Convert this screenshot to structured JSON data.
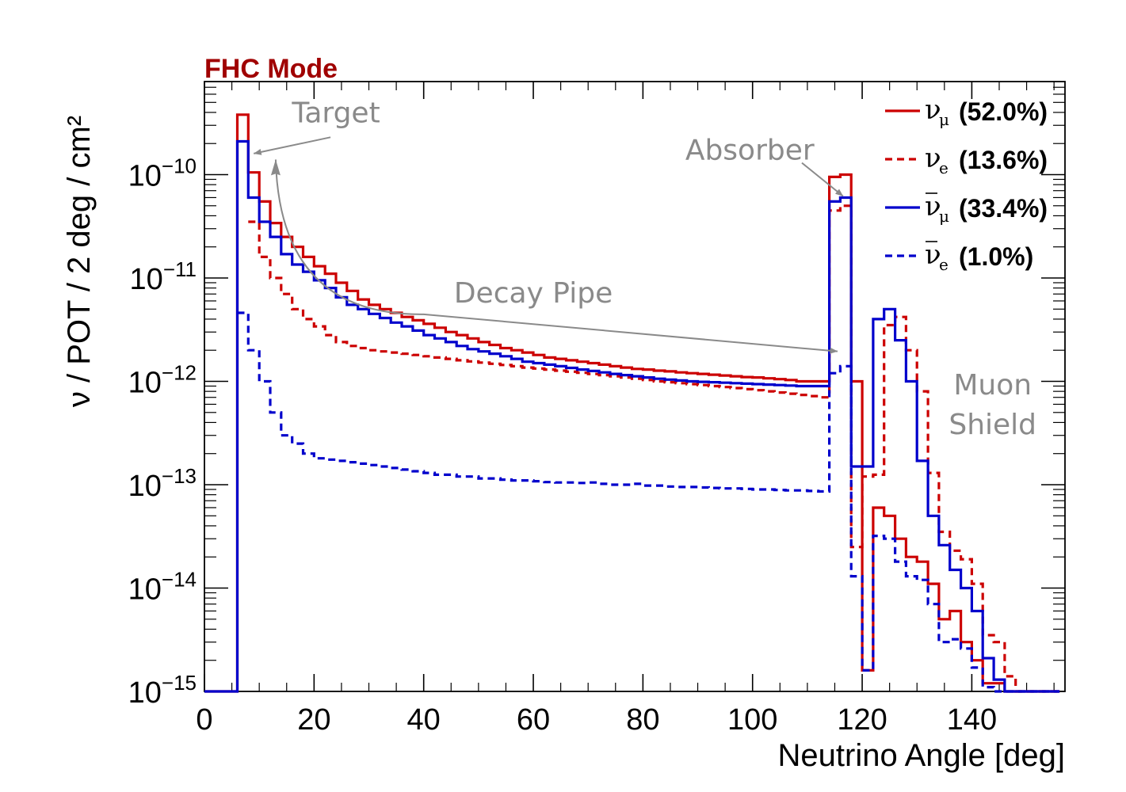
{
  "chart_data": {
    "type": "line",
    "title": "FHC Mode",
    "title_color": "#a00000",
    "xlabel": "Neutrino Angle [deg]",
    "ylabel": "ν / POT / 2 deg / cm²",
    "xlim": [
      0,
      157
    ],
    "ylim": [
      1e-15,
      1e-09
    ],
    "yscale": "log",
    "x_ticks": [
      "0",
      "20",
      "40",
      "60",
      "80",
      "100",
      "120",
      "140"
    ],
    "x_tick_values": [
      0,
      20,
      40,
      60,
      80,
      100,
      120,
      140
    ],
    "y_ticks": [
      {
        "value": 1e-15,
        "base": "10",
        "exp": "−15"
      },
      {
        "value": 1e-14,
        "base": "10",
        "exp": "−14"
      },
      {
        "value": 1e-13,
        "base": "10",
        "exp": "−13"
      },
      {
        "value": 1e-12,
        "base": "10",
        "exp": "−12"
      },
      {
        "value": 1e-11,
        "base": "10",
        "exp": "−11"
      },
      {
        "value": 1e-10,
        "base": "10",
        "exp": "−10"
      }
    ],
    "bin_edges_start": 0,
    "bin_width": 2,
    "grid": false,
    "legend_position": "top-right",
    "series": [
      {
        "name": "ν_μ (52.0%)",
        "symbol": "ν",
        "sub": "μ",
        "bar": false,
        "pct": "(52.0%)",
        "color": "#cc0000",
        "dash": false,
        "values": [
          1e-15,
          1e-15,
          1e-15,
          3.8e-10,
          1.05e-10,
          5.5e-11,
          3.4e-11,
          2.5e-11,
          2e-11,
          1.6e-11,
          1.3e-11,
          1.1e-11,
          9e-12,
          7.5e-12,
          6.2e-12,
          5.5e-12,
          5e-12,
          4.6e-12,
          4.2e-12,
          3.9e-12,
          3.6e-12,
          3.3e-12,
          3e-12,
          2.8e-12,
          2.6e-12,
          2.4e-12,
          2.25e-12,
          2.1e-12,
          2e-12,
          1.9e-12,
          1.8e-12,
          1.7e-12,
          1.65e-12,
          1.6e-12,
          1.55e-12,
          1.5e-12,
          1.45e-12,
          1.4e-12,
          1.36e-12,
          1.32e-12,
          1.3e-12,
          1.27e-12,
          1.25e-12,
          1.22e-12,
          1.2e-12,
          1.18e-12,
          1.16e-12,
          1.14e-12,
          1.12e-12,
          1.1e-12,
          1.09e-12,
          1.07e-12,
          1.05e-12,
          1.03e-12,
          1e-12,
          1e-12,
          1e-12,
          9.5e-11,
          1e-10,
          1e-12,
          1.6e-15,
          6e-14,
          5e-14,
          3e-14,
          2e-14,
          1.8e-14,
          1.1e-14,
          5e-15,
          6e-15,
          3e-15,
          2e-15,
          1.2e-15,
          1.2e-15,
          1e-15,
          1e-15,
          1e-15,
          1e-15,
          1e-15
        ]
      },
      {
        "name": "ν_e (13.6%)",
        "symbol": "ν",
        "sub": "e",
        "bar": false,
        "pct": "(13.6%)",
        "color": "#cc0000",
        "dash": true,
        "values": [
          null,
          null,
          null,
          null,
          3.5e-11,
          1.6e-11,
          1e-11,
          7e-12,
          5e-12,
          4e-12,
          3.4e-12,
          2.8e-12,
          2.4e-12,
          2.2e-12,
          2.1e-12,
          2e-12,
          1.95e-12,
          1.9e-12,
          1.85e-12,
          1.8e-12,
          1.75e-12,
          1.7e-12,
          1.65e-12,
          1.6e-12,
          1.56e-12,
          1.52e-12,
          1.48e-12,
          1.44e-12,
          1.4e-12,
          1.36e-12,
          1.33e-12,
          1.3e-12,
          1.27e-12,
          1.24e-12,
          1.21e-12,
          1.18e-12,
          1.15e-12,
          1.12e-12,
          1.09e-12,
          1.06e-12,
          1.03e-12,
          1e-12,
          9.8e-13,
          9.6e-13,
          9.4e-13,
          9.2e-13,
          9e-13,
          8.8e-13,
          8.6e-13,
          8.4e-13,
          8.2e-13,
          8e-13,
          7.8e-13,
          7.6e-13,
          7.4e-13,
          7.2e-13,
          7e-13,
          4.5e-11,
          5e-11,
          2.5e-14,
          1.2e-13,
          1.25e-13,
          3.5e-12,
          4.2e-12,
          2e-12,
          8e-13,
          1.3e-13,
          3.5e-14,
          2.3e-14,
          1.9e-14,
          1.1e-14,
          3.5e-15,
          3e-15,
          1.4e-15,
          1e-15,
          1e-15,
          1e-15,
          1e-15
        ]
      },
      {
        "name": "ν̄_μ (33.4%)",
        "symbol": "ν",
        "sub": "μ",
        "bar": true,
        "pct": "(33.4%)",
        "color": "#0000cc",
        "dash": false,
        "values": [
          1e-15,
          1e-15,
          1e-15,
          2.1e-10,
          6e-11,
          3.5e-11,
          2.5e-11,
          1.7e-11,
          1.35e-11,
          1.15e-11,
          9.5e-12,
          8e-12,
          6.5e-12,
          5.5e-12,
          5e-12,
          4.5e-12,
          4.1e-12,
          3.7e-12,
          3.4e-12,
          3.1e-12,
          2.8e-12,
          2.6e-12,
          2.4e-12,
          2.2e-12,
          2.05e-12,
          1.95e-12,
          1.85e-12,
          1.75e-12,
          1.65e-12,
          1.55e-12,
          1.5e-12,
          1.45e-12,
          1.4e-12,
          1.35e-12,
          1.3e-12,
          1.26e-12,
          1.22e-12,
          1.18e-12,
          1.15e-12,
          1.12e-12,
          1.09e-12,
          1.06e-12,
          1.04e-12,
          1.02e-12,
          1e-12,
          9.9e-13,
          9.8e-13,
          9.7e-13,
          9.6e-13,
          9.5e-13,
          9.4e-13,
          9.3e-13,
          9.2e-13,
          9.1e-13,
          9e-13,
          9e-13,
          9e-13,
          5.5e-11,
          6e-11,
          1.5e-13,
          1.5e-13,
          4e-12,
          5e-12,
          2.5e-12,
          1e-12,
          1.7e-13,
          5e-14,
          2.6e-14,
          1.5e-14,
          1e-14,
          6e-15,
          2.1e-15,
          1.3e-15,
          1e-15,
          1e-15,
          1e-15,
          1e-15,
          1e-15
        ]
      },
      {
        "name": "ν̄_e (1.0%)",
        "symbol": "ν",
        "sub": "e",
        "bar": true,
        "pct": "(1.0%)",
        "color": "#0000cc",
        "dash": true,
        "values": [
          null,
          null,
          null,
          4.6e-12,
          2e-12,
          1e-12,
          5e-13,
          3e-13,
          2.5e-13,
          2e-13,
          1.8e-13,
          1.75e-13,
          1.7e-13,
          1.65e-13,
          1.6e-13,
          1.55e-13,
          1.5e-13,
          1.45e-13,
          1.4e-13,
          1.35e-13,
          1.3e-13,
          1.25e-13,
          1.25e-13,
          1.2e-13,
          1.2e-13,
          1.15e-13,
          1.15e-13,
          1.12e-13,
          1.1e-13,
          1.1e-13,
          1.08e-13,
          1.06e-13,
          1.05e-13,
          1.05e-13,
          1.04e-13,
          1.05e-13,
          1.02e-13,
          1e-13,
          1e-13,
          1.02e-13,
          9.8e-14,
          9.8e-14,
          9.6e-14,
          9.5e-14,
          9.5e-14,
          9.4e-14,
          9.3e-14,
          9.2e-14,
          9.2e-14,
          9.1e-14,
          9e-14,
          9e-14,
          8.9e-14,
          8.8e-14,
          8.8e-14,
          8.7e-14,
          8.6e-14,
          1.2e-12,
          1.4e-12,
          1.3e-14,
          1.6e-15,
          3.2e-14,
          3e-14,
          1.8e-14,
          1.3e-14,
          1.2e-14,
          7e-15,
          3e-15,
          3.2e-15,
          2.6e-15,
          1.7e-15,
          1.1e-15,
          1e-15,
          1e-15,
          1e-15,
          1e-15,
          1e-15,
          1e-15
        ]
      }
    ],
    "annotations": [
      {
        "text": "Target",
        "x": 24,
        "y": 3.2e-10
      },
      {
        "text": "Absorber",
        "x": 99.5,
        "y": 1.4e-10
      },
      {
        "text": "Decay Pipe",
        "x": 60,
        "y": 5.8e-12
      },
      {
        "text": "Muon",
        "x": 143.8,
        "y": 7.5e-13
      },
      {
        "text": "Shield",
        "x": 143.8,
        "y": 3.1e-13
      }
    ],
    "arrows": [
      {
        "from": [
          23,
          2.3e-10
        ],
        "to": [
          9,
          1.6e-10
        ]
      },
      {
        "from": [
          109,
          1.3e-10
        ],
        "to": [
          116.5,
          6.2e-11
        ]
      },
      {
        "from": [
          40,
          4.3e-12
        ],
        "to": [
          115.5,
          1.95e-12
        ],
        "curve_via": [
          13,
          1.4e-10
        ]
      }
    ]
  }
}
